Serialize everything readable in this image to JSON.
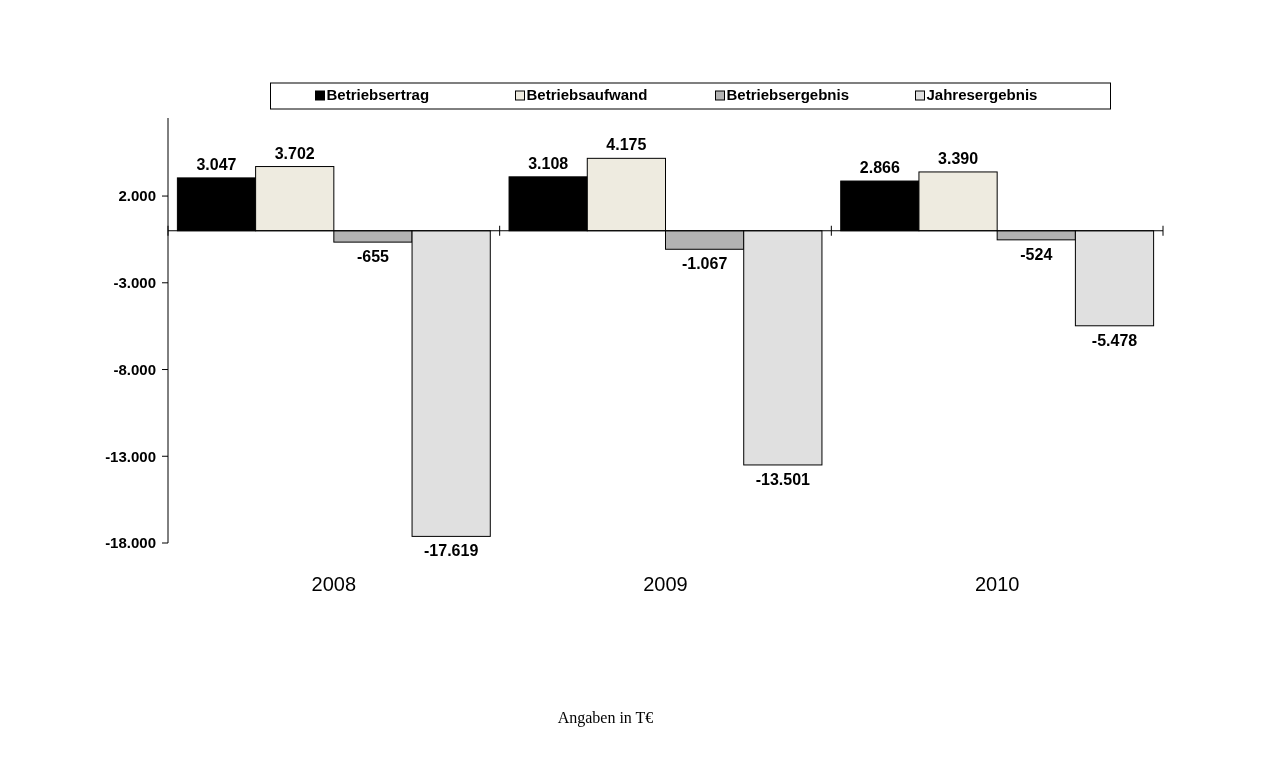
{
  "chart_data": {
    "type": "bar",
    "categories": [
      "2008",
      "2009",
      "2010"
    ],
    "series": [
      {
        "name": "Betriebsertrag",
        "color": "#000000",
        "values": [
          3047,
          3108,
          2866
        ],
        "value_labels": [
          "3.047",
          "3.108",
          "2.866"
        ]
      },
      {
        "name": "Betriebsaufwand",
        "color": "#eeebe0",
        "values": [
          3702,
          4175,
          3390
        ],
        "value_labels": [
          "3.702",
          "4.175",
          "3.390"
        ]
      },
      {
        "name": "Betriebsergebnis",
        "color": "#b3b3b3",
        "values": [
          -655,
          -1067,
          -524
        ],
        "value_labels": [
          "-655",
          "-1.067",
          "-524"
        ]
      },
      {
        "name": "Jahresergebnis",
        "color": "#e0e0e0",
        "values": [
          -17619,
          -13501,
          -5478
        ],
        "value_labels": [
          "-17.619",
          "-13.501",
          "-5.478"
        ]
      }
    ],
    "ylim": [
      -18000,
      6500
    ],
    "yticks": [
      {
        "value": 2000,
        "label": "2.000"
      },
      {
        "value": -3000,
        "label": "-3.000"
      },
      {
        "value": -8000,
        "label": "-8.000"
      },
      {
        "value": -13000,
        "label": "-13.000"
      },
      {
        "value": -18000,
        "label": "-18.000"
      }
    ],
    "legend": "top",
    "grid": false,
    "annotations": [
      "Angaben in T€"
    ]
  }
}
